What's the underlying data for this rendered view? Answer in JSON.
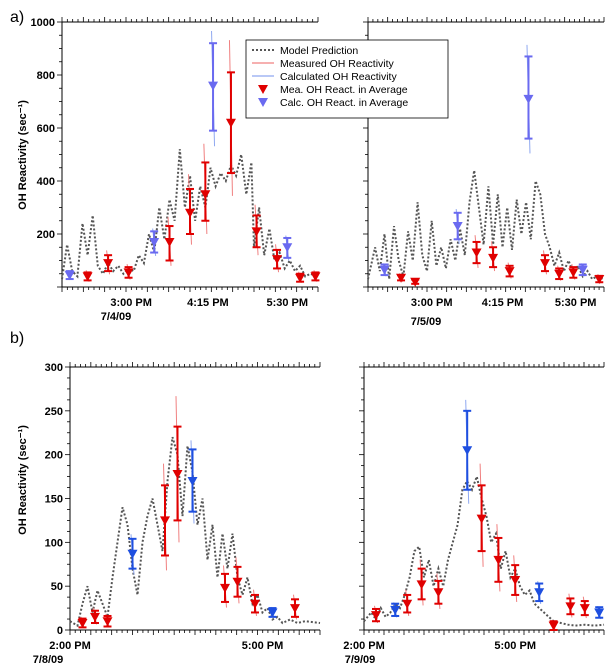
{
  "panels": {
    "a": "a)",
    "b": "b)"
  },
  "legend": {
    "model": "Model Prediction",
    "measured": "Measured OH Reactivity",
    "calculated": "Calculated OH Reactivity",
    "mea_avg": "Mea. OH React. in Average",
    "calc_avg": "Calc. OH React. in Average"
  },
  "colors": {
    "model": "#555555",
    "measured": "#f08080",
    "calculated": "#8fa8f0",
    "mea_avg": "#e00000",
    "calc_avg_a": "#6a6af0",
    "calc_avg_b": "#1e4fe0"
  },
  "chart_data": [
    {
      "type": "line",
      "panel": "a-left",
      "ylabel": "OH Reactivity (sec⁻¹)",
      "ylim": [
        0,
        1000
      ],
      "yticks": [
        200,
        400,
        600,
        800,
        1000
      ],
      "xtick_labels": [
        "3:00 PM",
        "4:15 PM",
        "5:30 PM"
      ],
      "date_label": "7/4/09",
      "model": [
        [
          0.0,
          30
        ],
        [
          0.02,
          160
        ],
        [
          0.04,
          60
        ],
        [
          0.06,
          40
        ],
        [
          0.08,
          240
        ],
        [
          0.1,
          120
        ],
        [
          0.12,
          270
        ],
        [
          0.14,
          80
        ],
        [
          0.16,
          50
        ],
        [
          0.18,
          90
        ],
        [
          0.2,
          60
        ],
        [
          0.22,
          80
        ],
        [
          0.24,
          50
        ],
        [
          0.26,
          70
        ],
        [
          0.28,
          60
        ],
        [
          0.3,
          120
        ],
        [
          0.32,
          90
        ],
        [
          0.34,
          200
        ],
        [
          0.36,
          130
        ],
        [
          0.38,
          300
        ],
        [
          0.4,
          180
        ],
        [
          0.42,
          330
        ],
        [
          0.44,
          250
        ],
        [
          0.46,
          520
        ],
        [
          0.48,
          300
        ],
        [
          0.5,
          420
        ],
        [
          0.52,
          250
        ],
        [
          0.54,
          380
        ],
        [
          0.56,
          300
        ],
        [
          0.58,
          450
        ],
        [
          0.6,
          380
        ],
        [
          0.62,
          430
        ],
        [
          0.64,
          400
        ],
        [
          0.66,
          460
        ],
        [
          0.68,
          420
        ],
        [
          0.7,
          500
        ],
        [
          0.72,
          350
        ],
        [
          0.74,
          470
        ],
        [
          0.75,
          150
        ],
        [
          0.77,
          300
        ],
        [
          0.79,
          120
        ],
        [
          0.81,
          220
        ],
        [
          0.83,
          100
        ],
        [
          0.85,
          130
        ],
        [
          0.87,
          70
        ],
        [
          0.89,
          100
        ],
        [
          0.91,
          60
        ],
        [
          0.93,
          80
        ],
        [
          0.95,
          40
        ],
        [
          0.97,
          50
        ],
        [
          1.0,
          40
        ]
      ],
      "mea_avg": [
        {
          "x": 0.1,
          "y": 40,
          "lo": 25,
          "hi": 55
        },
        {
          "x": 0.18,
          "y": 90,
          "lo": 60,
          "hi": 120
        },
        {
          "x": 0.26,
          "y": 55,
          "lo": 35,
          "hi": 75
        },
        {
          "x": 0.42,
          "y": 170,
          "lo": 100,
          "hi": 230
        },
        {
          "x": 0.5,
          "y": 280,
          "lo": 200,
          "hi": 370
        },
        {
          "x": 0.56,
          "y": 350,
          "lo": 250,
          "hi": 470
        },
        {
          "x": 0.66,
          "y": 620,
          "lo": 430,
          "hi": 810
        },
        {
          "x": 0.76,
          "y": 210,
          "lo": 150,
          "hi": 270
        },
        {
          "x": 0.84,
          "y": 105,
          "lo": 70,
          "hi": 140
        },
        {
          "x": 0.93,
          "y": 35,
          "lo": 20,
          "hi": 50
        },
        {
          "x": 0.99,
          "y": 40,
          "lo": 25,
          "hi": 55
        }
      ],
      "calc_avg": [
        {
          "x": 0.03,
          "y": 45,
          "lo": 30,
          "hi": 60
        },
        {
          "x": 0.36,
          "y": 170,
          "lo": 130,
          "hi": 210
        },
        {
          "x": 0.59,
          "y": 760,
          "lo": 590,
          "hi": 920
        },
        {
          "x": 0.88,
          "y": 150,
          "lo": 110,
          "hi": 185
        }
      ]
    },
    {
      "type": "line",
      "panel": "a-right",
      "ylim": [
        0,
        1000
      ],
      "xtick_labels": [
        "3:00 PM",
        "4:15 PM",
        "5:30 PM"
      ],
      "date_label": "7/5/09",
      "model": [
        [
          0.0,
          30
        ],
        [
          0.03,
          150
        ],
        [
          0.05,
          60
        ],
        [
          0.07,
          200
        ],
        [
          0.09,
          30
        ],
        [
          0.11,
          230
        ],
        [
          0.13,
          100
        ],
        [
          0.15,
          40
        ],
        [
          0.17,
          210
        ],
        [
          0.19,
          100
        ],
        [
          0.21,
          320
        ],
        [
          0.23,
          120
        ],
        [
          0.25,
          60
        ],
        [
          0.27,
          250
        ],
        [
          0.29,
          80
        ],
        [
          0.31,
          150
        ],
        [
          0.33,
          70
        ],
        [
          0.35,
          180
        ],
        [
          0.37,
          100
        ],
        [
          0.39,
          220
        ],
        [
          0.41,
          120
        ],
        [
          0.43,
          320
        ],
        [
          0.45,
          440
        ],
        [
          0.47,
          300
        ],
        [
          0.49,
          160
        ],
        [
          0.51,
          380
        ],
        [
          0.53,
          160
        ],
        [
          0.55,
          350
        ],
        [
          0.57,
          150
        ],
        [
          0.59,
          300
        ],
        [
          0.61,
          140
        ],
        [
          0.63,
          330
        ],
        [
          0.65,
          200
        ],
        [
          0.67,
          320
        ],
        [
          0.69,
          180
        ],
        [
          0.71,
          400
        ],
        [
          0.73,
          350
        ],
        [
          0.75,
          200
        ],
        [
          0.77,
          150
        ],
        [
          0.79,
          80
        ],
        [
          0.81,
          130
        ],
        [
          0.83,
          60
        ],
        [
          0.85,
          100
        ],
        [
          0.87,
          50
        ],
        [
          0.89,
          80
        ],
        [
          0.91,
          40
        ],
        [
          0.93,
          60
        ],
        [
          0.95,
          30
        ],
        [
          0.97,
          40
        ],
        [
          1.0,
          30
        ]
      ],
      "mea_avg": [
        {
          "x": 0.14,
          "y": 35,
          "lo": 25,
          "hi": 45
        },
        {
          "x": 0.2,
          "y": 20,
          "lo": 12,
          "hi": 28
        },
        {
          "x": 0.46,
          "y": 130,
          "lo": 90,
          "hi": 170
        },
        {
          "x": 0.53,
          "y": 110,
          "lo": 75,
          "hi": 150
        },
        {
          "x": 0.6,
          "y": 60,
          "lo": 40,
          "hi": 80
        },
        {
          "x": 0.75,
          "y": 90,
          "lo": 60,
          "hi": 120
        },
        {
          "x": 0.81,
          "y": 50,
          "lo": 30,
          "hi": 70
        },
        {
          "x": 0.87,
          "y": 55,
          "lo": 35,
          "hi": 75
        },
        {
          "x": 0.98,
          "y": 30,
          "lo": 18,
          "hi": 42
        }
      ],
      "calc_avg": [
        {
          "x": 0.07,
          "y": 65,
          "lo": 45,
          "hi": 85
        },
        {
          "x": 0.38,
          "y": 230,
          "lo": 180,
          "hi": 280
        },
        {
          "x": 0.68,
          "y": 710,
          "lo": 560,
          "hi": 870
        },
        {
          "x": 0.91,
          "y": 65,
          "lo": 45,
          "hi": 85
        }
      ]
    },
    {
      "type": "line",
      "panel": "b-left",
      "ylabel": "OH Reactivity (sec⁻¹)",
      "ylim": [
        0,
        300
      ],
      "yticks": [
        0,
        50,
        100,
        150,
        200,
        250,
        300
      ],
      "xtick_labels": [
        "2:00 PM",
        "5:00 PM"
      ],
      "date_label": "7/8/09",
      "model": [
        [
          0.0,
          10
        ],
        [
          0.03,
          5
        ],
        [
          0.05,
          30
        ],
        [
          0.07,
          50
        ],
        [
          0.09,
          20
        ],
        [
          0.11,
          45
        ],
        [
          0.13,
          30
        ],
        [
          0.15,
          15
        ],
        [
          0.17,
          60
        ],
        [
          0.19,
          100
        ],
        [
          0.21,
          140
        ],
        [
          0.23,
          120
        ],
        [
          0.25,
          70
        ],
        [
          0.27,
          40
        ],
        [
          0.29,
          100
        ],
        [
          0.31,
          130
        ],
        [
          0.33,
          150
        ],
        [
          0.35,
          120
        ],
        [
          0.37,
          90
        ],
        [
          0.39,
          170
        ],
        [
          0.41,
          220
        ],
        [
          0.43,
          200
        ],
        [
          0.45,
          130
        ],
        [
          0.47,
          210
        ],
        [
          0.49,
          180
        ],
        [
          0.51,
          120
        ],
        [
          0.53,
          150
        ],
        [
          0.55,
          80
        ],
        [
          0.57,
          120
        ],
        [
          0.59,
          60
        ],
        [
          0.61,
          110
        ],
        [
          0.63,
          70
        ],
        [
          0.65,
          110
        ],
        [
          0.67,
          60
        ],
        [
          0.69,
          40
        ],
        [
          0.71,
          60
        ],
        [
          0.73,
          30
        ],
        [
          0.75,
          40
        ],
        [
          0.77,
          20
        ],
        [
          0.79,
          25
        ],
        [
          0.81,
          12
        ],
        [
          0.83,
          15
        ],
        [
          0.85,
          8
        ],
        [
          0.88,
          12
        ],
        [
          0.91,
          8
        ],
        [
          0.94,
          10
        ],
        [
          1.0,
          8
        ]
      ],
      "mea_avg": [
        {
          "x": 0.05,
          "y": 8,
          "lo": 3,
          "hi": 13
        },
        {
          "x": 0.1,
          "y": 15,
          "lo": 8,
          "hi": 22
        },
        {
          "x": 0.15,
          "y": 10,
          "lo": 4,
          "hi": 16
        },
        {
          "x": 0.38,
          "y": 125,
          "lo": 85,
          "hi": 165
        },
        {
          "x": 0.43,
          "y": 178,
          "lo": 125,
          "hi": 232
        },
        {
          "x": 0.62,
          "y": 48,
          "lo": 32,
          "hi": 64
        },
        {
          "x": 0.67,
          "y": 55,
          "lo": 38,
          "hi": 72
        },
        {
          "x": 0.74,
          "y": 30,
          "lo": 20,
          "hi": 40
        },
        {
          "x": 0.9,
          "y": 25,
          "lo": 15,
          "hi": 35
        }
      ],
      "calc_avg": [
        {
          "x": 0.25,
          "y": 87,
          "lo": 70,
          "hi": 104
        },
        {
          "x": 0.49,
          "y": 170,
          "lo": 135,
          "hi": 206
        },
        {
          "x": 0.81,
          "y": 20,
          "lo": 15,
          "hi": 25
        }
      ]
    },
    {
      "type": "line",
      "panel": "b-right",
      "ylim": [
        0,
        300
      ],
      "xtick_labels": [
        "2:00 PM",
        "5:00 PM"
      ],
      "date_label": "7/9/09",
      "model": [
        [
          0.0,
          10
        ],
        [
          0.03,
          20
        ],
        [
          0.05,
          12
        ],
        [
          0.07,
          25
        ],
        [
          0.09,
          15
        ],
        [
          0.11,
          20
        ],
        [
          0.13,
          30
        ],
        [
          0.15,
          25
        ],
        [
          0.17,
          40
        ],
        [
          0.19,
          60
        ],
        [
          0.21,
          90
        ],
        [
          0.23,
          95
        ],
        [
          0.25,
          60
        ],
        [
          0.27,
          80
        ],
        [
          0.29,
          50
        ],
        [
          0.31,
          70
        ],
        [
          0.33,
          50
        ],
        [
          0.35,
          80
        ],
        [
          0.37,
          100
        ],
        [
          0.39,
          120
        ],
        [
          0.41,
          160
        ],
        [
          0.43,
          170
        ],
        [
          0.45,
          160
        ],
        [
          0.47,
          175
        ],
        [
          0.49,
          150
        ],
        [
          0.51,
          130
        ],
        [
          0.53,
          100
        ],
        [
          0.55,
          110
        ],
        [
          0.57,
          70
        ],
        [
          0.59,
          90
        ],
        [
          0.61,
          60
        ],
        [
          0.63,
          70
        ],
        [
          0.65,
          50
        ],
        [
          0.67,
          40
        ],
        [
          0.69,
          45
        ],
        [
          0.71,
          30
        ],
        [
          0.73,
          25
        ],
        [
          0.75,
          20
        ],
        [
          0.77,
          15
        ],
        [
          0.79,
          10
        ],
        [
          0.82,
          8
        ],
        [
          0.85,
          6
        ],
        [
          0.88,
          5
        ],
        [
          0.92,
          6
        ],
        [
          0.96,
          5
        ],
        [
          1.0,
          6
        ]
      ],
      "mea_avg": [
        {
          "x": 0.05,
          "y": 17,
          "lo": 10,
          "hi": 24
        },
        {
          "x": 0.18,
          "y": 30,
          "lo": 20,
          "hi": 40
        },
        {
          "x": 0.24,
          "y": 52,
          "lo": 35,
          "hi": 70
        },
        {
          "x": 0.31,
          "y": 43,
          "lo": 30,
          "hi": 56
        },
        {
          "x": 0.49,
          "y": 127,
          "lo": 90,
          "hi": 165
        },
        {
          "x": 0.56,
          "y": 80,
          "lo": 55,
          "hi": 105
        },
        {
          "x": 0.63,
          "y": 57,
          "lo": 40,
          "hi": 74
        },
        {
          "x": 0.79,
          "y": 5,
          "lo": 0,
          "hi": 10
        },
        {
          "x": 0.86,
          "y": 27,
          "lo": 18,
          "hi": 36
        },
        {
          "x": 0.92,
          "y": 25,
          "lo": 17,
          "hi": 33
        }
      ],
      "calc_avg": [
        {
          "x": 0.13,
          "y": 23,
          "lo": 16,
          "hi": 30
        },
        {
          "x": 0.43,
          "y": 205,
          "lo": 160,
          "hi": 250
        },
        {
          "x": 0.73,
          "y": 43,
          "lo": 33,
          "hi": 53
        },
        {
          "x": 0.98,
          "y": 20,
          "lo": 14,
          "hi": 26
        }
      ]
    }
  ]
}
